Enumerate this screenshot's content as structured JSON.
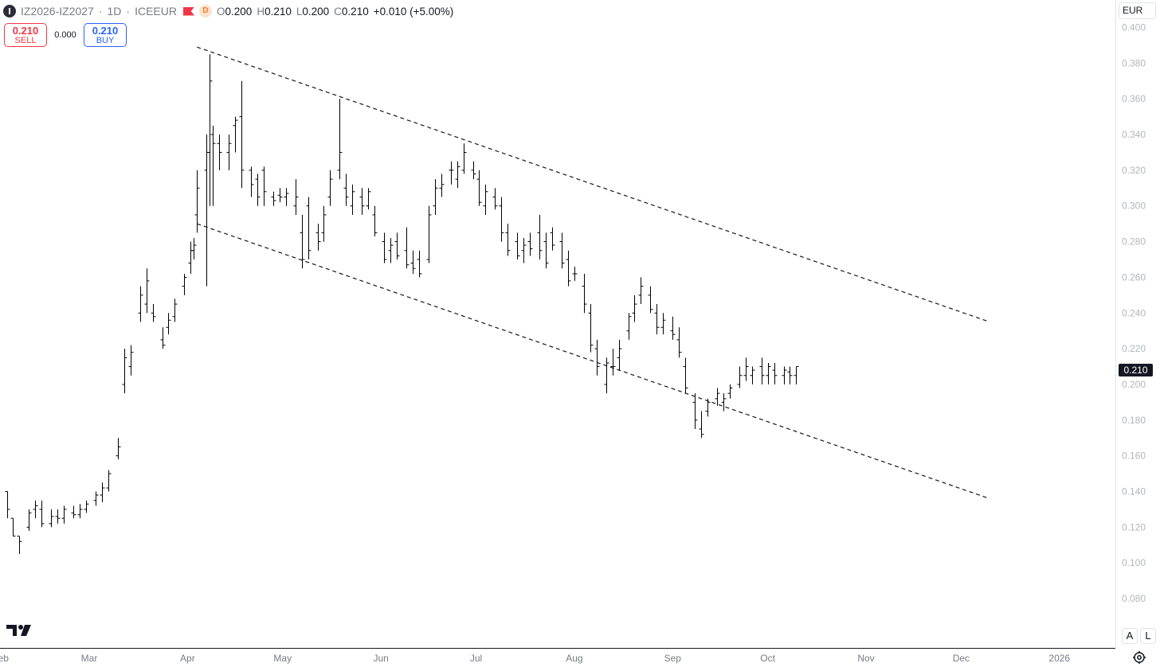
{
  "header": {
    "symbol": "IZ2026-IZ2027",
    "sep1": "·",
    "interval": "1D",
    "sep2": "·",
    "exchange": "ICEEUR",
    "delay_badge": "D",
    "open_label": "O",
    "open": "0.200",
    "high_label": "H",
    "high": "0.210",
    "low_label": "L",
    "low": "0.200",
    "close_label": "C",
    "close": "0.210",
    "change": "+0.010 (+5.00%)"
  },
  "trade": {
    "sell_price": "0.210",
    "sell_label": "SELL",
    "spread": "0.000",
    "buy_price": "0.210",
    "buy_label": "BUY"
  },
  "currency": "EUR",
  "last_price_tag": "0.210",
  "bottom_buttons": {
    "auto": "A",
    "log": "L"
  },
  "colors": {
    "sell": "#f23645",
    "buy": "#2962ff",
    "bars": "#000000",
    "axis_text": "#b2b5be",
    "time_text": "#787b86"
  },
  "chart_data": {
    "type": "ohlc",
    "y_ticks": [
      "0.400",
      "0.380",
      "0.360",
      "0.340",
      "0.320",
      "0.300",
      "0.280",
      "0.260",
      "0.240",
      "0.220",
      "0.200",
      "0.180",
      "0.160",
      "0.140",
      "0.120",
      "0.100",
      "0.080"
    ],
    "ylim": [
      0.072,
      0.402
    ],
    "x_ticks": [
      {
        "label": "Feb",
        "date": "2025-02-01"
      },
      {
        "label": "Mar",
        "date": "2025-03-01"
      },
      {
        "label": "Apr",
        "date": "2025-04-01"
      },
      {
        "label": "May",
        "date": "2025-05-01"
      },
      {
        "label": "Jun",
        "date": "2025-06-01"
      },
      {
        "label": "Jul",
        "date": "2025-07-01"
      },
      {
        "label": "Aug",
        "date": "2025-08-01"
      },
      {
        "label": "Sep",
        "date": "2025-09-01"
      },
      {
        "label": "Oct",
        "date": "2025-10-01"
      },
      {
        "label": "Nov",
        "date": "2025-11-01"
      },
      {
        "label": "Dec",
        "date": "2025-12-01"
      },
      {
        "label": "2026",
        "date": "2026-01-01"
      }
    ],
    "trendlines": [
      {
        "name": "upper",
        "from": {
          "date": "2025-04-04",
          "value": 0.389
        },
        "to": {
          "date": "2025-12-10",
          "value": 0.235
        }
      },
      {
        "name": "lower",
        "from": {
          "date": "2025-04-04",
          "value": 0.29
        },
        "to": {
          "date": "2025-12-10",
          "value": 0.136
        }
      }
    ],
    "ohlc": [
      [
        "2025-01-30",
        0.145,
        0.145,
        0.14,
        0.14
      ],
      [
        "2025-02-03",
        0.14,
        0.14,
        0.125,
        0.13
      ],
      [
        "2025-02-05",
        0.125,
        0.125,
        0.115,
        0.115
      ],
      [
        "2025-02-07",
        0.115,
        0.115,
        0.105,
        0.112
      ],
      [
        "2025-02-10",
        0.12,
        0.13,
        0.118,
        0.128
      ],
      [
        "2025-02-12",
        0.13,
        0.135,
        0.125,
        0.132
      ],
      [
        "2025-02-14",
        0.13,
        0.135,
        0.12,
        0.122
      ],
      [
        "2025-02-17",
        0.122,
        0.13,
        0.12,
        0.126
      ],
      [
        "2025-02-19",
        0.126,
        0.13,
        0.122,
        0.125
      ],
      [
        "2025-02-21",
        0.125,
        0.132,
        0.122,
        0.13
      ],
      [
        "2025-02-24",
        0.128,
        0.132,
        0.125,
        0.127
      ],
      [
        "2025-02-26",
        0.127,
        0.133,
        0.125,
        0.13
      ],
      [
        "2025-02-28",
        0.13,
        0.135,
        0.128,
        0.133
      ],
      [
        "2025-03-03",
        0.135,
        0.14,
        0.132,
        0.138
      ],
      [
        "2025-03-05",
        0.138,
        0.145,
        0.134,
        0.142
      ],
      [
        "2025-03-07",
        0.142,
        0.152,
        0.14,
        0.15
      ],
      [
        "2025-03-10",
        0.16,
        0.17,
        0.158,
        0.165
      ],
      [
        "2025-03-12",
        0.2,
        0.22,
        0.195,
        0.215
      ],
      [
        "2025-03-14",
        0.21,
        0.222,
        0.205,
        0.218
      ],
      [
        "2025-03-17",
        0.24,
        0.255,
        0.235,
        0.25
      ],
      [
        "2025-03-19",
        0.245,
        0.265,
        0.24,
        0.258
      ],
      [
        "2025-03-21",
        0.24,
        0.245,
        0.235,
        0.238
      ],
      [
        "2025-03-24",
        0.225,
        0.232,
        0.22,
        0.222
      ],
      [
        "2025-03-26",
        0.232,
        0.24,
        0.228,
        0.236
      ],
      [
        "2025-03-28",
        0.238,
        0.248,
        0.235,
        0.245
      ],
      [
        "2025-03-31",
        0.255,
        0.262,
        0.25,
        0.26
      ],
      [
        "2025-04-02",
        0.268,
        0.28,
        0.262,
        0.275
      ],
      [
        "2025-04-03",
        0.275,
        0.282,
        0.27,
        0.278
      ],
      [
        "2025-04-04",
        0.295,
        0.32,
        0.285,
        0.31
      ],
      [
        "2025-04-07",
        0.32,
        0.34,
        0.255,
        0.33
      ],
      [
        "2025-04-08",
        0.33,
        0.385,
        0.3,
        0.37
      ],
      [
        "2025-04-09",
        0.34,
        0.345,
        0.3,
        0.335
      ],
      [
        "2025-04-11",
        0.335,
        0.34,
        0.32,
        0.33
      ],
      [
        "2025-04-14",
        0.33,
        0.34,
        0.32,
        0.335
      ],
      [
        "2025-04-16",
        0.345,
        0.35,
        0.33,
        0.348
      ],
      [
        "2025-04-18",
        0.35,
        0.37,
        0.31,
        0.32
      ],
      [
        "2025-04-21",
        0.32,
        0.322,
        0.305,
        0.312
      ],
      [
        "2025-04-23",
        0.315,
        0.318,
        0.3,
        0.305
      ],
      [
        "2025-04-25",
        0.32,
        0.322,
        0.3,
        0.308
      ],
      [
        "2025-04-28",
        0.305,
        0.308,
        0.3,
        0.303
      ],
      [
        "2025-04-30",
        0.306,
        0.31,
        0.302,
        0.305
      ],
      [
        "2025-05-02",
        0.305,
        0.31,
        0.3,
        0.307
      ],
      [
        "2025-05-05",
        0.3,
        0.315,
        0.295,
        0.305
      ],
      [
        "2025-05-07",
        0.285,
        0.295,
        0.265,
        0.27
      ],
      [
        "2025-05-09",
        0.3,
        0.305,
        0.27,
        0.275
      ],
      [
        "2025-05-12",
        0.285,
        0.29,
        0.275,
        0.28
      ],
      [
        "2025-05-14",
        0.285,
        0.3,
        0.28,
        0.295
      ],
      [
        "2025-05-16",
        0.305,
        0.32,
        0.3,
        0.315
      ],
      [
        "2025-05-19",
        0.32,
        0.36,
        0.315,
        0.33
      ],
      [
        "2025-05-21",
        0.31,
        0.318,
        0.3,
        0.305
      ],
      [
        "2025-05-23",
        0.3,
        0.312,
        0.295,
        0.308
      ],
      [
        "2025-05-26",
        0.305,
        0.31,
        0.295,
        0.3
      ],
      [
        "2025-05-28",
        0.3,
        0.31,
        0.298,
        0.308
      ],
      [
        "2025-05-30",
        0.295,
        0.3,
        0.283,
        0.285
      ],
      [
        "2025-06-02",
        0.28,
        0.285,
        0.268,
        0.27
      ],
      [
        "2025-06-04",
        0.275,
        0.282,
        0.268,
        0.278
      ],
      [
        "2025-06-06",
        0.28,
        0.285,
        0.27,
        0.272
      ],
      [
        "2025-06-09",
        0.275,
        0.288,
        0.265,
        0.267
      ],
      [
        "2025-06-11",
        0.268,
        0.275,
        0.262,
        0.265
      ],
      [
        "2025-06-13",
        0.27,
        0.275,
        0.26,
        0.262
      ],
      [
        "2025-06-16",
        0.27,
        0.3,
        0.268,
        0.295
      ],
      [
        "2025-06-18",
        0.3,
        0.315,
        0.295,
        0.31
      ],
      [
        "2025-06-20",
        0.31,
        0.318,
        0.305,
        0.312
      ],
      [
        "2025-06-23",
        0.32,
        0.325,
        0.312,
        0.32
      ],
      [
        "2025-06-25",
        0.315,
        0.325,
        0.31,
        0.322
      ],
      [
        "2025-06-27",
        0.32,
        0.335,
        0.318,
        0.33
      ],
      [
        "2025-06-30",
        0.32,
        0.325,
        0.315,
        0.318
      ],
      [
        "2025-07-02",
        0.315,
        0.32,
        0.3,
        0.302
      ],
      [
        "2025-07-04",
        0.3,
        0.312,
        0.295,
        0.308
      ],
      [
        "2025-07-07",
        0.305,
        0.31,
        0.298,
        0.3
      ],
      [
        "2025-07-09",
        0.3,
        0.305,
        0.28,
        0.285
      ],
      [
        "2025-07-11",
        0.285,
        0.29,
        0.272,
        0.275
      ],
      [
        "2025-07-14",
        0.28,
        0.285,
        0.27,
        0.272
      ],
      [
        "2025-07-16",
        0.275,
        0.282,
        0.268,
        0.278
      ],
      [
        "2025-07-18",
        0.28,
        0.285,
        0.272,
        0.276
      ],
      [
        "2025-07-21",
        0.285,
        0.295,
        0.27,
        0.275
      ],
      [
        "2025-07-23",
        0.28,
        0.285,
        0.265,
        0.268
      ],
      [
        "2025-07-25",
        0.285,
        0.288,
        0.275,
        0.278
      ],
      [
        "2025-07-28",
        0.28,
        0.285,
        0.265,
        0.268
      ],
      [
        "2025-07-30",
        0.27,
        0.275,
        0.255,
        0.258
      ],
      [
        "2025-08-01",
        0.262,
        0.266,
        0.258,
        0.262
      ],
      [
        "2025-08-04",
        0.255,
        0.262,
        0.24,
        0.245
      ],
      [
        "2025-08-06",
        0.24,
        0.245,
        0.218,
        0.222
      ],
      [
        "2025-08-08",
        0.22,
        0.225,
        0.205,
        0.21
      ],
      [
        "2025-08-11",
        0.2,
        0.215,
        0.195,
        0.212
      ],
      [
        "2025-08-13",
        0.21,
        0.22,
        0.205,
        0.21
      ],
      [
        "2025-08-15",
        0.215,
        0.225,
        0.208,
        0.22
      ],
      [
        "2025-08-18",
        0.23,
        0.24,
        0.225,
        0.238
      ],
      [
        "2025-08-20",
        0.24,
        0.25,
        0.235,
        0.245
      ],
      [
        "2025-08-22",
        0.25,
        0.26,
        0.245,
        0.255
      ],
      [
        "2025-08-25",
        0.25,
        0.255,
        0.24,
        0.242
      ],
      [
        "2025-08-27",
        0.24,
        0.245,
        0.228,
        0.232
      ],
      [
        "2025-08-29",
        0.232,
        0.24,
        0.228,
        0.236
      ],
      [
        "2025-09-01",
        0.23,
        0.238,
        0.225,
        0.228
      ],
      [
        "2025-09-03",
        0.225,
        0.232,
        0.215,
        0.218
      ],
      [
        "2025-09-05",
        0.21,
        0.215,
        0.195,
        0.198
      ],
      [
        "2025-09-08",
        0.19,
        0.195,
        0.175,
        0.18
      ],
      [
        "2025-09-10",
        0.175,
        0.185,
        0.17,
        0.172
      ],
      [
        "2025-09-12",
        0.185,
        0.192,
        0.182,
        0.19
      ],
      [
        "2025-09-15",
        0.192,
        0.198,
        0.188,
        0.195
      ],
      [
        "2025-09-17",
        0.19,
        0.195,
        0.185,
        0.192
      ],
      [
        "2025-09-19",
        0.195,
        0.2,
        0.192,
        0.198
      ],
      [
        "2025-09-22",
        0.2,
        0.21,
        0.198,
        0.205
      ],
      [
        "2025-09-24",
        0.205,
        0.215,
        0.202,
        0.21
      ],
      [
        "2025-09-26",
        0.205,
        0.21,
        0.2,
        0.208
      ],
      [
        "2025-09-29",
        0.21,
        0.215,
        0.2,
        0.205
      ],
      [
        "2025-10-01",
        0.205,
        0.212,
        0.2,
        0.21
      ],
      [
        "2025-10-03",
        0.208,
        0.212,
        0.2,
        0.205
      ],
      [
        "2025-10-06",
        0.205,
        0.21,
        0.2,
        0.208
      ],
      [
        "2025-10-08",
        0.207,
        0.21,
        0.2,
        0.205
      ],
      [
        "2025-10-10",
        0.205,
        0.21,
        0.2,
        0.21
      ]
    ]
  }
}
